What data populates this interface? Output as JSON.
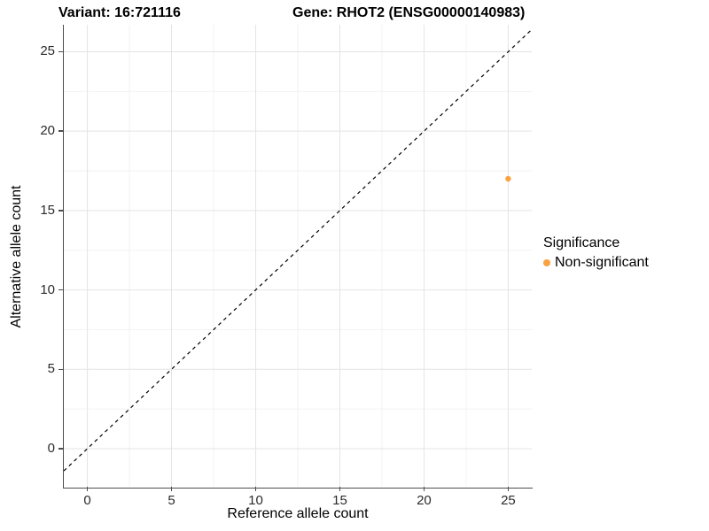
{
  "title": {
    "variant": "Variant: 16:721116",
    "gene": "Gene: RHOT2 (ENSG00000140983)"
  },
  "axes": {
    "x_label": "Reference allele count",
    "y_label": "Alternative allele count",
    "x_ticks": [
      0,
      5,
      10,
      15,
      20,
      25
    ],
    "y_ticks": [
      0,
      5,
      10,
      15,
      20,
      25
    ]
  },
  "legend": {
    "title": "Significance",
    "items": [
      {
        "label": "Non-significant",
        "color": "#F9A242"
      }
    ]
  },
  "colors": {
    "axis_line": "#4d4d4d",
    "tick_text": "#2b2b2b",
    "grid_major": "#e4e4e4",
    "grid_minor": "#f2f2f2",
    "reference_line": "#000000",
    "point": "#F9A242",
    "background": "#ffffff"
  },
  "chart_data": {
    "type": "scatter",
    "title": "Variant: 16:721116    Gene: RHOT2 (ENSG00000140983)",
    "xlabel": "Reference allele count",
    "ylabel": "Alternative allele count",
    "xlim": [
      -1.4,
      26.4
    ],
    "ylim": [
      -2.4,
      26.7
    ],
    "x_ticks": [
      0,
      5,
      10,
      15,
      20,
      25
    ],
    "y_ticks": [
      0,
      5,
      10,
      15,
      20,
      25
    ],
    "grid": {
      "on": true,
      "major_every": 5,
      "minor_every": 2.5
    },
    "series": [
      {
        "name": "Non-significant",
        "color": "#F9A242",
        "points": [
          {
            "x": 25,
            "y": 17
          }
        ]
      }
    ],
    "reference_line": {
      "kind": "identity",
      "slope": 1,
      "intercept": 0,
      "style": "dashed",
      "color": "#000000"
    },
    "legend_title": "Significance",
    "legend_position": "right"
  }
}
